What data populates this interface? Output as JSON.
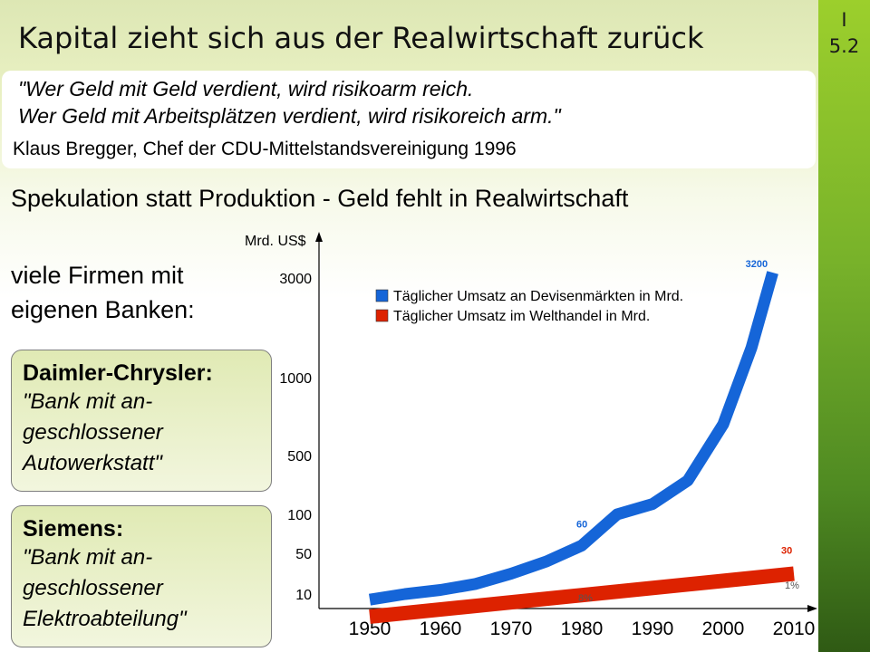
{
  "slide": {
    "number_line1": "I",
    "number_line2": "5.2"
  },
  "title": "Kapital zieht sich aus der Realwirtschaft zurück",
  "quote": {
    "line1": "\"Wer Geld mit Geld verdient, wird risikoarm reich.",
    "line2": "Wer Geld mit Arbeitsplätzen verdient, wird risikoreich arm.\"",
    "author": "Klaus Bregger, Chef der CDU-Mittelstandsvereinigung 1996"
  },
  "subtitle": "Spekulation statt Produktion - Geld fehlt in Realwirtschaft",
  "firmen": {
    "line1": "viele Firmen mit",
    "line2": "eigenen Banken:"
  },
  "cards": [
    {
      "title": "Daimler-Chrysler:",
      "line1": "\"Bank mit an-",
      "line2": "geschlossener",
      "line3": "Autowerkstatt\""
    },
    {
      "title": "Siemens:",
      "line1": "\"Bank mit an-",
      "line2": "geschlossener",
      "line3": "Elektroabteilung\""
    }
  ],
  "colors": {
    "accent_green": "#7ab32a",
    "blue_series": "#1565d8",
    "red_series": "#dd2200"
  },
  "chart_data": {
    "type": "line",
    "ylabel": "Mrd. US$",
    "xlabel": "",
    "x_ticks": [
      "1950",
      "1960",
      "1970",
      "1980",
      "1990",
      "2000",
      "2010"
    ],
    "y_ticks": [
      "3000",
      "1000",
      "500",
      "100",
      "50",
      "10"
    ],
    "legend": [
      {
        "label": "Täglicher Umsatz an Devisenmärkten in Mrd.",
        "color": "#1565d8"
      },
      {
        "label": "Täglicher Umsatz im Welthandel in Mrd.",
        "color": "#dd2200"
      }
    ],
    "legend_position": "top-left",
    "series": [
      {
        "name": "Täglicher Umsatz an Devisenmärkten in Mrd.",
        "color": "#1565d8",
        "x": [
          1950,
          1955,
          1960,
          1965,
          1970,
          1975,
          1980,
          1985,
          1990,
          1995,
          2000,
          2004,
          2007
        ],
        "y": [
          8,
          10,
          14,
          20,
          30,
          42,
          60,
          100,
          170,
          330,
          700,
          1600,
          3200
        ]
      },
      {
        "name": "Täglicher Umsatz im Welthandel in Mrd.",
        "color": "#dd2200",
        "x": [
          1950,
          2010
        ],
        "y": [
          2,
          30
        ]
      }
    ],
    "data_labels": [
      {
        "text": "3200",
        "x": 2007,
        "y": 3200,
        "color": "#1565d8"
      },
      {
        "text": "60",
        "x": 1980,
        "y": 60,
        "color": "#1565d8"
      },
      {
        "text": "5",
        "x": 1980,
        "y": 5,
        "color": "#dd2200"
      },
      {
        "text": "30",
        "x": 2010,
        "y": 30,
        "color": "#dd2200"
      }
    ],
    "percent_labels": [
      {
        "text": "8%",
        "x": 1980
      },
      {
        "text": "1%",
        "x": 2010
      }
    ],
    "grid": false
  }
}
